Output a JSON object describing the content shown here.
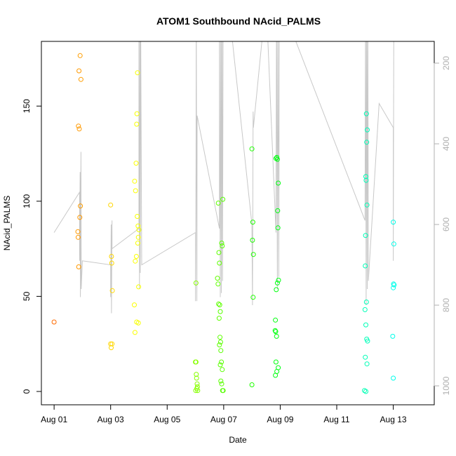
{
  "chart_data": {
    "type": "scatter",
    "title": "ATOM1 Southbound NAcid_PALMS",
    "xlabel": "Date",
    "ylabel": "NAcid_PALMS",
    "x_unit": "days (0 = Aug 01)",
    "xlim": [
      -0.45,
      13.45
    ],
    "ylim": [
      -7,
      184
    ],
    "x_ticks": [
      {
        "value": 0,
        "label": "Aug 01"
      },
      {
        "value": 2,
        "label": "Aug 03"
      },
      {
        "value": 4,
        "label": "Aug 05"
      },
      {
        "value": 6,
        "label": "Aug 07"
      },
      {
        "value": 8,
        "label": "Aug 09"
      },
      {
        "value": 10,
        "label": "Aug 11"
      },
      {
        "value": 12,
        "label": "Aug 13"
      }
    ],
    "y_ticks": [
      {
        "value": 0,
        "label": "0"
      },
      {
        "value": 50,
        "label": "50"
      },
      {
        "value": 100,
        "label": "100"
      },
      {
        "value": 150,
        "label": "150"
      }
    ],
    "secondary_axis": {
      "side": "right",
      "reversed": true,
      "color": "#b0b0b0",
      "ticks": [
        {
          "value": 200,
          "label": "200"
        },
        {
          "value": 400,
          "label": "400"
        },
        {
          "value": 600,
          "label": "600"
        },
        {
          "value": 800,
          "label": "800"
        },
        {
          "value": 1000,
          "label": "1000"
        }
      ]
    },
    "grid": false,
    "marker": "open-circle",
    "color_note": "points colored by time: orange (Aug 01) to cyan (Aug 13)",
    "points": [
      [
        0.0,
        36.5
      ],
      [
        0.88,
        168.5
      ],
      [
        0.92,
        176.5
      ],
      [
        0.95,
        164.0
      ],
      [
        0.86,
        139.5
      ],
      [
        0.89,
        138.0
      ],
      [
        0.93,
        97.5
      ],
      [
        0.91,
        91.5
      ],
      [
        0.84,
        84.0
      ],
      [
        0.85,
        81.0
      ],
      [
        0.87,
        65.5
      ],
      [
        2.0,
        98.0
      ],
      [
        2.03,
        71.0
      ],
      [
        2.04,
        67.5
      ],
      [
        2.06,
        53.0
      ],
      [
        2.0,
        25.0
      ],
      [
        2.02,
        23.0
      ],
      [
        2.05,
        25.0
      ],
      [
        2.85,
        110.5
      ],
      [
        2.88,
        105.5
      ],
      [
        2.9,
        120.0
      ],
      [
        2.92,
        140.5
      ],
      [
        2.93,
        146.0
      ],
      [
        2.95,
        167.5
      ],
      [
        2.94,
        92.0
      ],
      [
        2.97,
        87.0
      ],
      [
        3.0,
        85.0
      ],
      [
        2.98,
        81.0
      ],
      [
        2.96,
        78.0
      ],
      [
        2.91,
        71.0
      ],
      [
        2.87,
        68.5
      ],
      [
        2.99,
        55.0
      ],
      [
        2.84,
        45.5
      ],
      [
        2.92,
        36.5
      ],
      [
        2.98,
        36.0
      ],
      [
        2.86,
        31.0
      ],
      [
        5.02,
        57.0
      ],
      [
        5.0,
        15.5
      ],
      [
        5.02,
        15.5
      ],
      [
        5.03,
        9.0
      ],
      [
        5.04,
        7.0
      ],
      [
        5.06,
        4.0
      ],
      [
        5.07,
        2.5
      ],
      [
        5.05,
        1.5
      ],
      [
        5.01,
        0.5
      ],
      [
        5.08,
        0.5
      ],
      [
        5.78,
        59.5
      ],
      [
        5.8,
        56.5
      ],
      [
        5.81,
        99.0
      ],
      [
        5.83,
        73.0
      ],
      [
        5.85,
        67.5
      ],
      [
        5.82,
        46.0
      ],
      [
        5.86,
        45.5
      ],
      [
        5.88,
        42.0
      ],
      [
        5.84,
        38.5
      ],
      [
        5.87,
        28.5
      ],
      [
        5.89,
        26.0
      ],
      [
        5.85,
        24.5
      ],
      [
        5.9,
        21.5
      ],
      [
        5.92,
        15.5
      ],
      [
        5.88,
        14.0
      ],
      [
        5.95,
        11.5
      ],
      [
        5.9,
        5.5
      ],
      [
        5.93,
        4.0
      ],
      [
        5.96,
        0.5
      ],
      [
        5.98,
        0.5
      ],
      [
        5.97,
        101.0
      ],
      [
        5.93,
        78.0
      ],
      [
        5.95,
        76.5
      ],
      [
        7.0,
        127.5
      ],
      [
        7.03,
        89.0
      ],
      [
        7.02,
        79.5
      ],
      [
        7.05,
        72.0
      ],
      [
        7.04,
        49.5
      ],
      [
        7.0,
        3.5
      ],
      [
        7.85,
        122.5
      ],
      [
        7.88,
        123.0
      ],
      [
        7.9,
        122.0
      ],
      [
        7.93,
        109.5
      ],
      [
        7.91,
        95.0
      ],
      [
        7.92,
        86.0
      ],
      [
        7.94,
        58.5
      ],
      [
        7.9,
        57.0
      ],
      [
        7.86,
        53.5
      ],
      [
        7.83,
        37.5
      ],
      [
        7.82,
        32.0
      ],
      [
        7.84,
        31.5
      ],
      [
        7.87,
        29.0
      ],
      [
        7.85,
        15.5
      ],
      [
        7.93,
        12.5
      ],
      [
        7.88,
        10.5
      ],
      [
        7.83,
        8.5
      ],
      [
        11.05,
        146.0
      ],
      [
        11.08,
        137.5
      ],
      [
        11.06,
        131.0
      ],
      [
        11.03,
        113.0
      ],
      [
        11.04,
        111.0
      ],
      [
        11.07,
        98.0
      ],
      [
        11.02,
        82.0
      ],
      [
        11.01,
        66.0
      ],
      [
        11.05,
        47.0
      ],
      [
        11.0,
        43.0
      ],
      [
        11.03,
        35.0
      ],
      [
        11.06,
        27.5
      ],
      [
        11.09,
        26.5
      ],
      [
        11.01,
        18.0
      ],
      [
        11.07,
        14.5
      ],
      [
        10.98,
        0.5
      ],
      [
        11.03,
        0.0
      ],
      [
        12.0,
        89.0
      ],
      [
        12.02,
        77.5
      ],
      [
        12.01,
        56.5
      ],
      [
        12.03,
        56.0
      ],
      [
        12.0,
        54.5
      ],
      [
        11.98,
        29.0
      ],
      [
        12.0,
        7.0
      ]
    ],
    "altitude_track": [
      [
        0.0,
        620
      ],
      [
        0.9,
        520
      ],
      [
        0.9,
        690
      ],
      [
        0.92,
        470
      ],
      [
        0.93,
        780
      ],
      [
        0.95,
        420
      ],
      [
        0.96,
        760
      ],
      [
        1.0,
        690
      ],
      [
        2.0,
        700
      ],
      [
        2.0,
        780
      ],
      [
        2.02,
        600
      ],
      [
        2.03,
        820
      ],
      [
        2.05,
        590
      ],
      [
        2.05,
        660
      ],
      [
        3.0,
        610
      ],
      [
        3.0,
        50
      ],
      [
        3.02,
        760
      ],
      [
        3.04,
        40
      ],
      [
        3.05,
        720
      ],
      [
        3.06,
        40
      ],
      [
        3.1,
        700
      ],
      [
        5.0,
        620
      ],
      [
        5.0,
        790
      ],
      [
        5.02,
        460
      ],
      [
        5.03,
        50
      ],
      [
        5.05,
        790
      ],
      [
        5.06,
        330
      ],
      [
        5.85,
        610
      ],
      [
        5.85,
        50
      ],
      [
        5.88,
        780
      ],
      [
        5.9,
        40
      ],
      [
        5.92,
        770
      ],
      [
        5.94,
        50
      ],
      [
        5.96,
        740
      ],
      [
        5.98,
        60
      ],
      [
        6.0,
        50
      ],
      [
        6.15,
        40
      ],
      [
        7.0,
        600
      ],
      [
        7.02,
        800
      ],
      [
        7.04,
        320
      ],
      [
        7.05,
        360
      ],
      [
        7.5,
        40
      ],
      [
        7.85,
        620
      ],
      [
        7.87,
        40
      ],
      [
        7.9,
        760
      ],
      [
        7.92,
        40
      ],
      [
        7.95,
        730
      ],
      [
        7.97,
        40
      ],
      [
        11.0,
        590
      ],
      [
        11.02,
        40
      ],
      [
        11.04,
        800
      ],
      [
        11.06,
        40
      ],
      [
        11.08,
        760
      ],
      [
        11.1,
        40
      ],
      [
        11.12,
        740
      ],
      [
        11.5,
        300
      ],
      [
        12.0,
        360
      ],
      [
        12.0,
        690
      ],
      [
        12.02,
        40
      ]
    ],
    "altitude_range": [
      150,
      1040
    ],
    "altitude_color": "#c8c8c8"
  }
}
